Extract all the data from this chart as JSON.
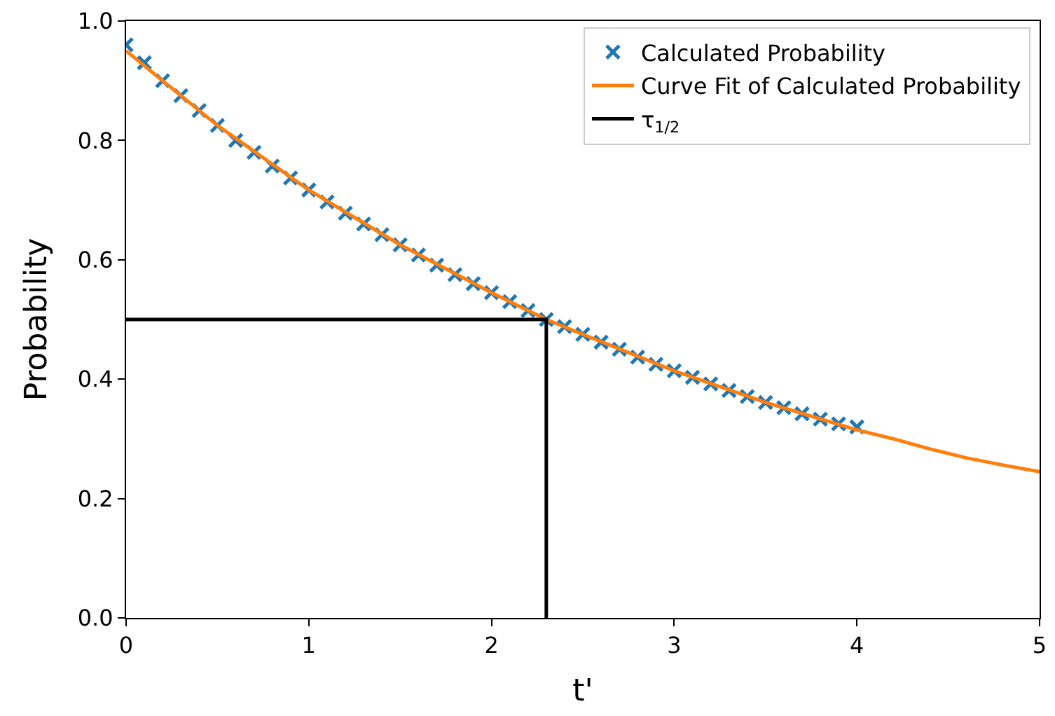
{
  "chart_data": {
    "type": "scatter",
    "xlabel": "t'",
    "ylabel": "Probability",
    "xlim": [
      0,
      5
    ],
    "xticks": [
      0,
      1,
      2,
      3,
      4,
      5
    ],
    "ylim": [
      0,
      1
    ],
    "yticks": [
      {
        "value": 0,
        "label": "0.0"
      },
      {
        "value": 0.2,
        "label": "0.2"
      },
      {
        "value": 0.4,
        "label": "0.4"
      },
      {
        "value": 0.6,
        "label": "0.6"
      },
      {
        "value": 0.8,
        "label": "0.8"
      },
      {
        "value": 1,
        "label": "1.0"
      }
    ],
    "legend": "top right",
    "series": [
      {
        "name": "Calculated Probability",
        "marker": "cross",
        "color": "#1f77b4",
        "x": [
          0,
          0.1,
          0.2,
          0.3,
          0.4,
          0.5,
          0.6,
          0.7,
          0.8,
          0.9,
          1.0,
          1.1,
          1.2,
          1.3,
          1.4,
          1.5,
          1.6,
          1.7,
          1.8,
          1.9,
          2.0,
          2.1,
          2.2,
          2.3,
          2.4,
          2.5,
          2.6,
          2.7,
          2.8,
          2.9,
          3.0,
          3.1,
          3.2,
          3.3,
          3.4,
          3.5,
          3.6,
          3.7,
          3.8,
          3.9,
          4.0
        ],
        "values": [
          0.96,
          0.93,
          0.9,
          0.875,
          0.85,
          0.825,
          0.8,
          0.78,
          0.757,
          0.737,
          0.717,
          0.697,
          0.678,
          0.66,
          0.642,
          0.625,
          0.608,
          0.591,
          0.575,
          0.56,
          0.545,
          0.53,
          0.515,
          0.5,
          0.488,
          0.475,
          0.462,
          0.45,
          0.437,
          0.425,
          0.414,
          0.403,
          0.392,
          0.381,
          0.371,
          0.361,
          0.352,
          0.342,
          0.333,
          0.325,
          0.32
        ]
      },
      {
        "name": "Curve Fit of Calculated Probability",
        "type": "line",
        "line_style": "solid",
        "color": "#ff7f0e",
        "x": [
          0,
          0.5,
          1.0,
          1.5,
          2.0,
          2.3,
          2.5,
          3.0,
          3.5,
          4.0,
          4.2,
          4.4,
          4.6,
          4.8,
          5.0
        ],
        "values": [
          0.95,
          0.825,
          0.717,
          0.625,
          0.545,
          0.5,
          0.475,
          0.414,
          0.361,
          0.315,
          0.3,
          0.283,
          0.268,
          0.256,
          0.245
        ]
      },
      {
        "name": "τ$_{1/2}$",
        "type": "line",
        "line_style": "solid",
        "color": "#000000",
        "x": [
          0,
          2.3,
          2.3
        ],
        "values": [
          0.5,
          0.5,
          0
        ]
      }
    ]
  }
}
